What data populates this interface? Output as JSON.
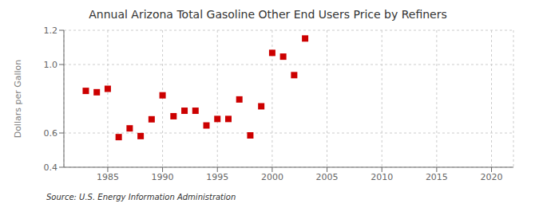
{
  "chart_data": {
    "type": "scatter",
    "title": "Annual Arizona Total Gasoline Other End Users Price by Refiners",
    "ylabel": "Dollars per Gallon",
    "annotation": "Source: U.S. Energy Information Administration",
    "x": [
      1983,
      1984,
      1985,
      1986,
      1987,
      1988,
      1989,
      1990,
      1991,
      1992,
      1993,
      1994,
      1995,
      1996,
      1997,
      1998,
      1999,
      2000,
      2001,
      2002,
      2003
    ],
    "values": [
      0.846,
      0.838,
      0.858,
      0.576,
      0.627,
      0.582,
      0.68,
      0.82,
      0.698,
      0.73,
      0.73,
      0.644,
      0.682,
      0.682,
      0.796,
      0.586,
      0.756,
      1.068,
      1.046,
      0.938,
      1.152
    ],
    "color": "#cc0000",
    "marker": "square",
    "xlim": [
      1981,
      2022
    ],
    "ylim": [
      0.4,
      1.2
    ],
    "xticks": [
      1985,
      1990,
      1995,
      2000,
      2005,
      2010,
      2015,
      2020
    ],
    "yticks": [
      0.4,
      0.6,
      {
        "value": 1,
        "label": "1.0"
      },
      1.2
    ],
    "grid": true
  }
}
